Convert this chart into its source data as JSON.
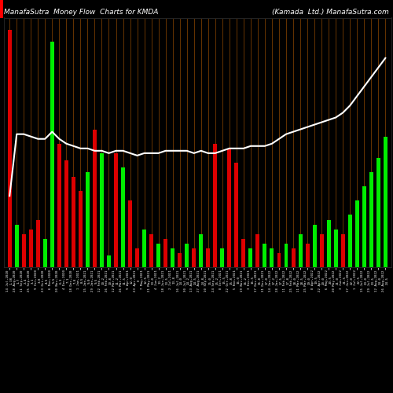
{
  "title_left": "ManafaSutra  Money Flow  Charts for KMDA",
  "title_right": "(Kamada  Ltd.) ManafaSutra.com",
  "background_color": "#000000",
  "bar_color_green": "#00ee00",
  "bar_color_red": "#dd0000",
  "line_color": "#ffffff",
  "grid_color": "#8B4500",
  "title_color": "#ffffff",
  "title_fontsize": 6.5,
  "bars": [
    {
      "value": 100,
      "color": "red"
    },
    {
      "value": 18,
      "color": "green"
    },
    {
      "value": 14,
      "color": "red"
    },
    {
      "value": 16,
      "color": "red"
    },
    {
      "value": 20,
      "color": "red"
    },
    {
      "value": 12,
      "color": "green"
    },
    {
      "value": 95,
      "color": "green"
    },
    {
      "value": 52,
      "color": "red"
    },
    {
      "value": 45,
      "color": "red"
    },
    {
      "value": 38,
      "color": "red"
    },
    {
      "value": 32,
      "color": "red"
    },
    {
      "value": 40,
      "color": "green"
    },
    {
      "value": 58,
      "color": "red"
    },
    {
      "value": 48,
      "color": "green"
    },
    {
      "value": 5,
      "color": "green"
    },
    {
      "value": 48,
      "color": "red"
    },
    {
      "value": 42,
      "color": "green"
    },
    {
      "value": 28,
      "color": "red"
    },
    {
      "value": 8,
      "color": "red"
    },
    {
      "value": 16,
      "color": "green"
    },
    {
      "value": 14,
      "color": "red"
    },
    {
      "value": 10,
      "color": "green"
    },
    {
      "value": 12,
      "color": "red"
    },
    {
      "value": 8,
      "color": "green"
    },
    {
      "value": 6,
      "color": "red"
    },
    {
      "value": 10,
      "color": "green"
    },
    {
      "value": 8,
      "color": "red"
    },
    {
      "value": 14,
      "color": "green"
    },
    {
      "value": 8,
      "color": "red"
    },
    {
      "value": 52,
      "color": "red"
    },
    {
      "value": 8,
      "color": "green"
    },
    {
      "value": 50,
      "color": "red"
    },
    {
      "value": 44,
      "color": "red"
    },
    {
      "value": 12,
      "color": "red"
    },
    {
      "value": 8,
      "color": "green"
    },
    {
      "value": 14,
      "color": "red"
    },
    {
      "value": 10,
      "color": "green"
    },
    {
      "value": 8,
      "color": "green"
    },
    {
      "value": 6,
      "color": "red"
    },
    {
      "value": 10,
      "color": "green"
    },
    {
      "value": 8,
      "color": "red"
    },
    {
      "value": 14,
      "color": "green"
    },
    {
      "value": 10,
      "color": "red"
    },
    {
      "value": 18,
      "color": "green"
    },
    {
      "value": 14,
      "color": "red"
    },
    {
      "value": 20,
      "color": "green"
    },
    {
      "value": 16,
      "color": "green"
    },
    {
      "value": 14,
      "color": "red"
    },
    {
      "value": 22,
      "color": "green"
    },
    {
      "value": 28,
      "color": "green"
    },
    {
      "value": 34,
      "color": "green"
    },
    {
      "value": 40,
      "color": "green"
    },
    {
      "value": 46,
      "color": "green"
    },
    {
      "value": 55,
      "color": "green"
    }
  ],
  "labels": [
    "14 Jul,2020\n1.38",
    "28 Aug,2020\n1.7",
    "11 Sep,2020\n2.4",
    "25 Sep,2020\n3.1",
    "9 Oct,2020\n3.8",
    "23 Oct,2020\n4.5",
    "6 Nov,2020\n5.5",
    "20 Nov,2020\n6.3",
    "4 Dec,2020\n7.1",
    "18 Dec,2020\n7.8",
    "1 Jan,2021\n8.5",
    "15 Jan,2021\n9.0",
    "29 Jan,2021\n9.5",
    "12 Feb,2021\n10.2",
    "26 Feb,2021\n10.8",
    "12 Mar,2021\n11.2",
    "26 Mar,2021\n11.5",
    "9 Apr,2021\n12.0",
    "23 Apr,2021\n0",
    "7 May,2021\n12.5",
    "21 May,2021\n13.0",
    "4 Jun,2021\n13.2",
    "18 Jun,2021\n13.5",
    "2 Jul,2021\n13.8",
    "16 Jul,2021\n14.0",
    "30 Jul,2021\n14.2",
    "13 Aug,2021\n14.5",
    "27 Aug,2021\n14.8",
    "10 Sep,2021\n15.0",
    "24 Sep,2021\n15.2",
    "8 Oct,2021\n15.5",
    "22 Oct,2021\n15.8",
    "5 Nov,2021\n16.0",
    "19 Nov,2021\n16.2",
    "3 Dec,2021\n16.5",
    "17 Dec,2021\n16.8",
    "31 Dec,2021\n17.0",
    "14 Jan,2022\n17.2",
    "28 Jan,2022\n17.5",
    "11 Feb,2022\n17.8",
    "25 Feb,2022\n18.0",
    "11 Mar,2022\n18.5",
    "25 Mar,2022\n19.0",
    "8 Apr,2022\n19.5",
    "22 Apr,2022\n20.0",
    "6 May,2022\n20.5",
    "20 May,2022\n21.0",
    "3 Jun,2022\n21.5",
    "17 Jun,2022\n22.0",
    "1 Jul,2022\n22.5",
    "15 Jul,2022\n23.0",
    "29 Jul,2022\n23.5",
    "12 Aug,2022\n24.0",
    "26 Aug,2022\n24.5"
  ],
  "line_values": [
    30,
    56,
    56,
    55,
    54,
    54,
    57,
    54,
    52,
    51,
    50,
    50,
    49,
    49,
    48,
    49,
    49,
    48,
    47,
    48,
    48,
    48,
    49,
    49,
    49,
    49,
    48,
    49,
    48,
    48,
    49,
    50,
    50,
    50,
    51,
    51,
    51,
    52,
    54,
    56,
    57,
    58,
    59,
    60,
    61,
    62,
    63,
    65,
    68,
    72,
    76,
    80,
    84,
    88
  ],
  "ylim": [
    0,
    105
  ],
  "line_ylim_max": 105
}
